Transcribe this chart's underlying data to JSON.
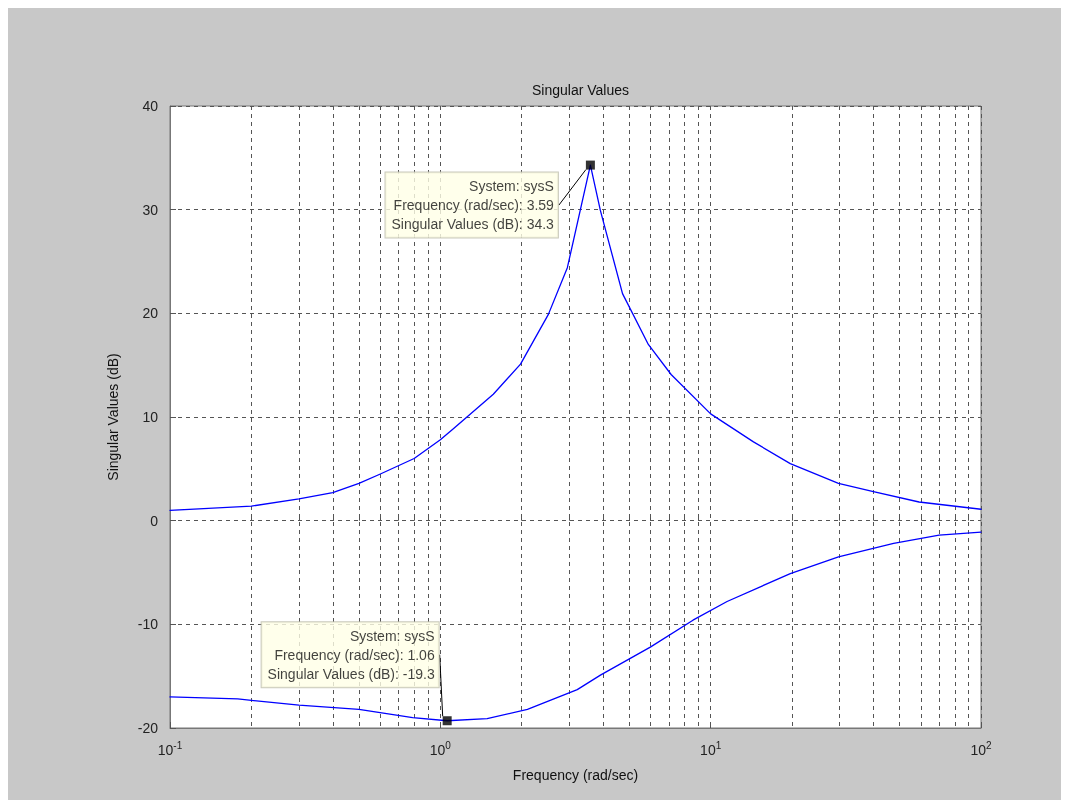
{
  "chart_data": {
    "type": "line",
    "title": "Singular Values",
    "xlabel": "Frequency (rad/sec)",
    "ylabel": "Singular Values (dB)",
    "log": "x",
    "grid": true,
    "marker": "none",
    "line_style": "solid",
    "xlim": [
      0.1,
      100
    ],
    "xticks": [
      {
        "value": 0.1,
        "label": "10$^{-1}$"
      },
      {
        "value": 1,
        "label": "10$^{0}$"
      },
      {
        "value": 10,
        "label": "10$^{1}$"
      },
      {
        "value": 100,
        "label": "10$^{2}$"
      }
    ],
    "ylim": [
      -20,
      40
    ],
    "yticks": [
      -20,
      -10,
      0,
      10,
      20,
      30,
      40
    ],
    "series": [
      {
        "color": "#0000ff",
        "x": [
          0.1,
          0.2,
          0.3,
          0.4,
          0.5,
          0.6,
          0.8,
          1.0,
          1.12,
          1.57,
          1.98,
          2.51,
          2.95,
          3.59,
          3.91,
          4.72,
          5.88,
          7.14,
          10,
          14.4,
          19.7,
          29.7,
          40,
          59,
          100
        ],
        "values": [
          1.0,
          1.4,
          2.1,
          2.7,
          3.6,
          4.5,
          6.0,
          7.8,
          8.9,
          12.2,
          15.1,
          19.9,
          24.4,
          34.3,
          29.9,
          21.9,
          17.0,
          14.1,
          10.3,
          7.6,
          5.5,
          3.6,
          2.8,
          1.8,
          1.1
        ]
      },
      {
        "color": "#0000ff",
        "x": [
          0.1,
          0.178,
          0.3,
          0.5,
          0.79,
          1.06,
          1.49,
          2.1,
          3.21,
          3.91,
          5.98,
          8.6,
          11.5,
          19.7,
          29.7,
          47.5,
          70,
          100
        ],
        "values": [
          -17.0,
          -17.2,
          -17.8,
          -18.2,
          -19.0,
          -19.3,
          -19.1,
          -18.2,
          -16.3,
          -14.9,
          -12.2,
          -9.6,
          -7.8,
          -5.1,
          -3.5,
          -2.2,
          -1.4,
          -1.1
        ]
      }
    ],
    "annotations": [
      {
        "text": "System: sysS\nFrequency (rad/sec): 3.59\nSingular Values (dB): 34.3",
        "x": 3.59,
        "y": 34.3
      },
      {
        "text": "System: sysS\nFrequency (rad/sec): 1.06\nSingular Values (dB): -19.3",
        "x": 1.06,
        "y": -19.3
      }
    ]
  }
}
